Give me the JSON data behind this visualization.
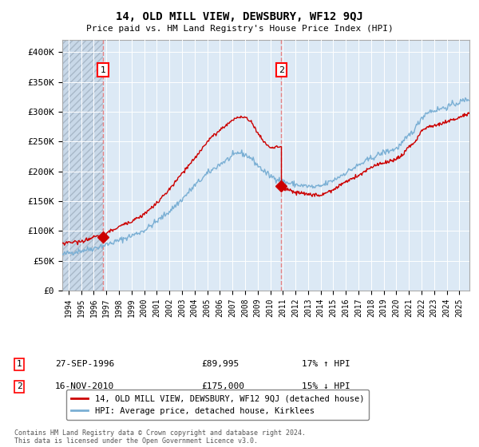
{
  "title": "14, OLD MILL VIEW, DEWSBURY, WF12 9QJ",
  "subtitle": "Price paid vs. HM Land Registry's House Price Index (HPI)",
  "background_color": "#ffffff",
  "plot_bg_color": "#dce9f5",
  "grid_color": "#ffffff",
  "sale1_date_num": 1996.74,
  "sale1_price": 89995,
  "sale1_label": "1",
  "sale2_date_num": 2010.88,
  "sale2_price": 175000,
  "sale2_label": "2",
  "hpi_line_color": "#7aafd4",
  "price_line_color": "#cc0000",
  "dashed_line_color": "#e87070",
  "ylim_min": 0,
  "ylim_max": 420000,
  "xlim_min": 1993.5,
  "xlim_max": 2025.8,
  "yticks": [
    0,
    50000,
    100000,
    150000,
    200000,
    250000,
    300000,
    350000,
    400000
  ],
  "ytick_labels": [
    "£0",
    "£50K",
    "£100K",
    "£150K",
    "£200K",
    "£250K",
    "£300K",
    "£350K",
    "£400K"
  ],
  "xticks": [
    1994,
    1995,
    1996,
    1997,
    1998,
    1999,
    2000,
    2001,
    2002,
    2003,
    2004,
    2005,
    2006,
    2007,
    2008,
    2009,
    2010,
    2011,
    2012,
    2013,
    2014,
    2015,
    2016,
    2017,
    2018,
    2019,
    2020,
    2021,
    2022,
    2023,
    2024,
    2025
  ],
  "legend_entry1": "14, OLD MILL VIEW, DEWSBURY, WF12 9QJ (detached house)",
  "legend_entry2": "HPI: Average price, detached house, Kirklees",
  "note1_num": "1",
  "note1_date": "27-SEP-1996",
  "note1_price": "£89,995",
  "note1_hpi": "17% ↑ HPI",
  "note2_num": "2",
  "note2_date": "16-NOV-2010",
  "note2_price": "£175,000",
  "note2_hpi": "15% ↓ HPI",
  "footer": "Contains HM Land Registry data © Crown copyright and database right 2024.\nThis data is licensed under the Open Government Licence v3.0."
}
